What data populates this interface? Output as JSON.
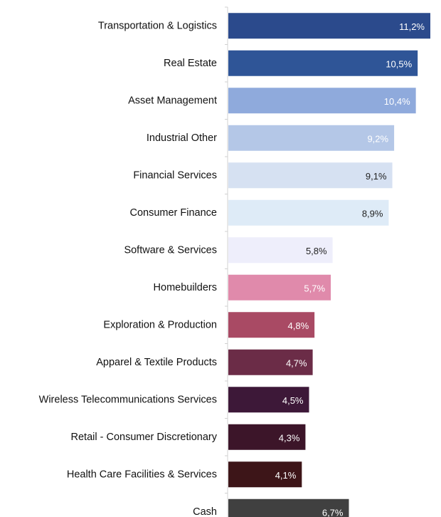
{
  "chart_data": {
    "type": "bar",
    "orientation": "horizontal",
    "title": "",
    "xlabel": "",
    "ylabel": "",
    "xlim": [
      0,
      11.2
    ],
    "grid": false,
    "legend": "none",
    "categories": [
      "Transportation & Logistics",
      "Real Estate",
      "Asset Management",
      "Industrial Other",
      "Financial Services",
      "Consumer Finance",
      "Software & Services",
      "Homebuilders",
      "Exploration & Production",
      "Apparel & Textile Products",
      "Wireless Telecommunications Services",
      "Retail - Consumer Discretionary",
      "Health Care Facilities & Services",
      "Cash"
    ],
    "values": [
      11.2,
      10.5,
      10.4,
      9.2,
      9.1,
      8.9,
      5.8,
      5.7,
      4.8,
      4.7,
      4.5,
      4.3,
      4.1,
      6.7
    ],
    "value_labels": [
      "11,2%",
      "10,5%",
      "10,4%",
      "9,2%",
      "9,1%",
      "8,9%",
      "5,8%",
      "5,7%",
      "4,8%",
      "4,7%",
      "4,5%",
      "4,3%",
      "4,1%",
      "6,7%"
    ],
    "colors": [
      "#2b4a8c",
      "#2f5597",
      "#8faadc",
      "#b4c7e7",
      "#d6e1f2",
      "#deebf7",
      "#eeeefb",
      "#e08aab",
      "#a94a64",
      "#6b2c47",
      "#3d1838",
      "#3c1529",
      "#3d1518",
      "#404040"
    ],
    "label_colors": [
      "#ffffff",
      "#ffffff",
      "#ffffff",
      "#ffffff",
      "#222222",
      "#222222",
      "#222222",
      "#ffffff",
      "#ffffff",
      "#ffffff",
      "#ffffff",
      "#ffffff",
      "#ffffff",
      "#ffffff"
    ]
  }
}
